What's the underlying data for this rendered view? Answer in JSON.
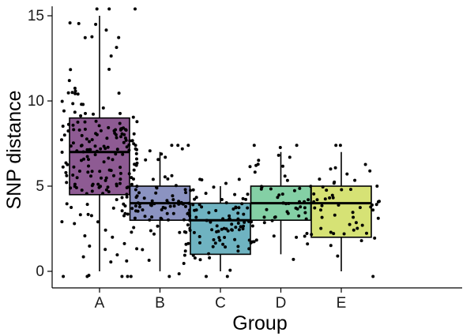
{
  "chart_data": {
    "type": "box",
    "xlabel": "Group",
    "ylabel": "SNP distance",
    "ylim": [
      0,
      15
    ],
    "y_ticks": [
      "0",
      "5",
      "10",
      "15"
    ],
    "grid": false,
    "legend": "none",
    "jitter_points": true,
    "series": [
      {
        "name": "A",
        "color": "#8e5b93",
        "whisker_low": 0,
        "q1": 4.5,
        "median": 7,
        "q3": 9,
        "whisker_high": 15,
        "n_points": 200
      },
      {
        "name": "B",
        "color": "#8b93c1",
        "whisker_low": 0,
        "q1": 3,
        "median": 4,
        "q3": 5,
        "whisker_high": 7,
        "n_points": 95
      },
      {
        "name": "C",
        "color": "#6fb3c1",
        "whisker_low": 0,
        "q1": 1,
        "median": 3,
        "q3": 4,
        "whisker_high": 5,
        "n_points": 95
      },
      {
        "name": "D",
        "color": "#84d0a5",
        "whisker_low": 1,
        "q1": 3,
        "median": 4,
        "q3": 5,
        "whisker_high": 7,
        "n_points": 55
      },
      {
        "name": "E",
        "color": "#d6e275",
        "whisker_low": 0,
        "q1": 2,
        "median": 4,
        "q3": 5,
        "whisker_high": 7,
        "n_points": 60
      }
    ]
  }
}
